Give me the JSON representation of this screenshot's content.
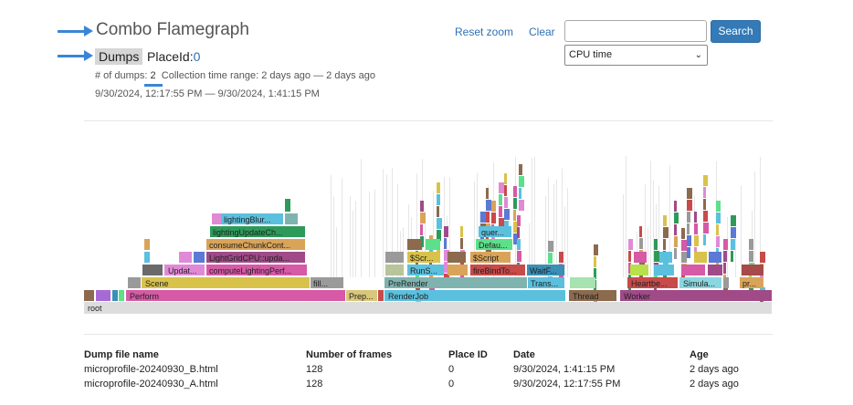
{
  "header": {
    "title": "Combo Flamegraph",
    "dumps_label": "Dumps",
    "place_label": "PlaceId:",
    "place_value": "0",
    "meta_prefix": "# of dumps: ",
    "meta_count": "2",
    "meta_suffix": "  Collection time range: 2 days ago — 2 days ago",
    "time_range": "9/30/2024, 12:17:55 PM — 9/30/2024, 1:41:15 PM"
  },
  "controls": {
    "reset_zoom": "Reset zoom",
    "clear": "Clear",
    "search_placeholder": "",
    "search_button": "Search",
    "metric_selected": "CPU time"
  },
  "flamegraph": {
    "root_label": "root",
    "frames": [
      {
        "label": "Perform",
        "color": "#d65aa6"
      },
      {
        "label": "Prep...",
        "color": "#d9c77a"
      },
      {
        "label": "RenderJob",
        "color": "#5bc0de"
      },
      {
        "label": "Thread",
        "color": "#8b6a4e"
      },
      {
        "label": "Worker",
        "color": "#a04a88"
      },
      {
        "label": "Scene",
        "color": "#d9c24a"
      },
      {
        "label": "fill...",
        "color": "#9a9a9a"
      },
      {
        "label": "PreRender",
        "color": "#7fb3b0"
      },
      {
        "label": "Trans...",
        "color": "#5bc0de"
      },
      {
        "label": "Heartbe...",
        "color": "#c84a4a"
      },
      {
        "label": "Simula...",
        "color": "#8bd6e0"
      },
      {
        "label": "pr...",
        "color": "#d9a45a"
      },
      {
        "label": "Updat...",
        "color": "#e08ad6"
      },
      {
        "label": "computeLightingPerf...",
        "color": "#d65aa6"
      },
      {
        "label": "RunS...",
        "color": "#5bc0de"
      },
      {
        "label": "fireBindTo...",
        "color": "#c84a4a"
      },
      {
        "label": "WaitF...",
        "color": "#3a8fb5"
      },
      {
        "label": "LightGridCPU::upda...",
        "color": "#a04a88"
      },
      {
        "label": "$Scr...",
        "color": "#d9c24a"
      },
      {
        "label": "$Script",
        "color": "#d9a45a"
      },
      {
        "label": "consumeChunkCont...",
        "color": "#d9a45a"
      },
      {
        "label": "Defau...",
        "color": "#5ce08a"
      },
      {
        "label": "lightingUpdateCh...",
        "color": "#2e9a5a"
      },
      {
        "label": "quer...",
        "color": "#5bc0de"
      },
      {
        "label": "lightingBlur...",
        "color": "#5bc0de"
      }
    ]
  },
  "table": {
    "headers": [
      "Dump file name",
      "Number of frames",
      "Place ID",
      "Date",
      "Age"
    ],
    "rows": [
      [
        "microprofile-20240930_B.html",
        "128",
        "0",
        "9/30/2024, 1:41:15 PM",
        "2 days ago"
      ],
      [
        "microprofile-20240930_A.html",
        "128",
        "0",
        "9/30/2024, 12:17:55 PM",
        "2 days ago"
      ]
    ]
  }
}
